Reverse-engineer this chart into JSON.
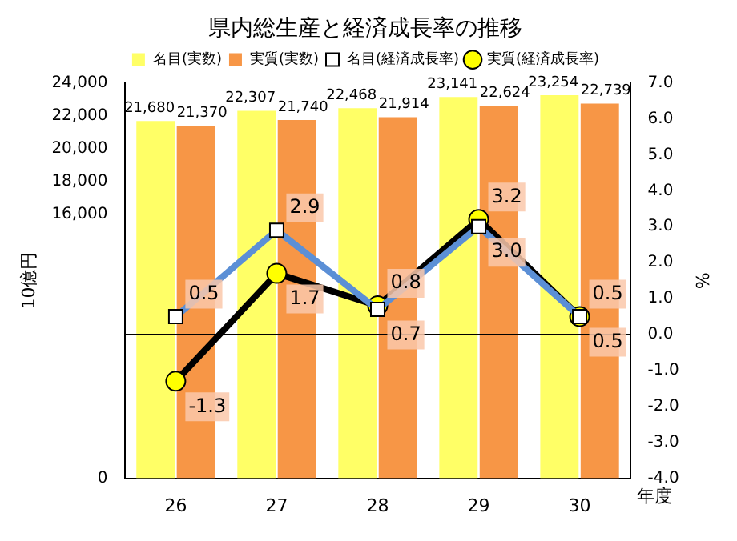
{
  "chart_data": {
    "type": "bar",
    "title": "県内総生産と経済成長率の推移",
    "ylabel": "10億円",
    "y2label": "%",
    "xlabel": "年度",
    "categories": [
      "26",
      "27",
      "28",
      "29",
      "30"
    ],
    "series": [
      {
        "name": "名目(実数)",
        "color": "#ffff66",
        "values": [
          21680,
          22307,
          22468,
          23141,
          23254
        ],
        "value_labels": [
          "21,680",
          "22,307",
          "22,468",
          "23,141",
          "23,254"
        ]
      },
      {
        "name": "実質(実数)",
        "color": "#f79646",
        "values": [
          21370,
          21740,
          21914,
          22624,
          22739
        ],
        "value_labels": [
          "21,370",
          "21,740",
          "21,914",
          "22,624",
          "22,739"
        ]
      },
      {
        "name": "名目(経済成長率)",
        "type": "line",
        "axis": "y2",
        "color": "#5b8fd6",
        "marker": "square",
        "values": [
          0.5,
          2.9,
          0.7,
          3.0,
          0.5
        ],
        "value_labels": [
          "0.5",
          "2.9",
          "0.7",
          "3.0",
          "0.5"
        ]
      },
      {
        "name": "実質(経済成長率)",
        "type": "line",
        "axis": "y2",
        "color": "#000000",
        "marker": "circle",
        "values": [
          -1.3,
          1.7,
          0.8,
          3.2,
          0.5
        ],
        "value_labels": [
          "-1.3",
          "1.7",
          "0.8",
          "3.2",
          "0.5"
        ]
      }
    ],
    "ylim": [
      0,
      24000
    ],
    "yticks": [
      {
        "value": 0,
        "label": "0"
      },
      {
        "value": 16000,
        "label": "16,000"
      },
      {
        "value": 18000,
        "label": "18,000"
      },
      {
        "value": 20000,
        "label": "20,000"
      },
      {
        "value": 22000,
        "label": "22,000"
      },
      {
        "value": 24000,
        "label": "24,000"
      }
    ],
    "y2lim": [
      -4,
      7
    ],
    "y2ticks": [
      {
        "value": -4,
        "label": "-4.0"
      },
      {
        "value": -3,
        "label": "-3.0"
      },
      {
        "value": -2,
        "label": "-2.0"
      },
      {
        "value": -1,
        "label": "-1.0"
      },
      {
        "value": 0,
        "label": "0.0"
      },
      {
        "value": 1,
        "label": "1.0"
      },
      {
        "value": 2,
        "label": "2.0"
      },
      {
        "value": 3,
        "label": "3.0"
      },
      {
        "value": 4,
        "label": "4.0"
      },
      {
        "value": 5,
        "label": "5.0"
      },
      {
        "value": 6,
        "label": "6.0"
      },
      {
        "value": 7,
        "label": "7.0"
      }
    ],
    "ref_lines": [
      {
        "axis": "y2",
        "value": 0,
        "color": "#000000"
      }
    ],
    "grid": false,
    "legend": "top"
  }
}
